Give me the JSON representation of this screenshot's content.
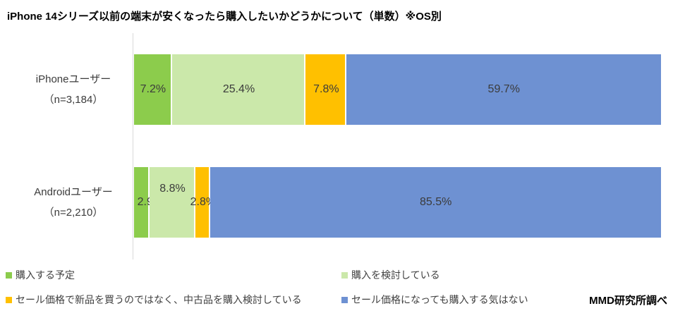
{
  "title": "iPhone 14シリーズ以前の端末が安くなったら購入したいかどうかについて（単数）※OS別",
  "source_note": "MMD研究所調べ",
  "colors": {
    "series_green": "#8ccc4c",
    "series_light_green": "#cbe8aa",
    "series_orange": "#ffc000",
    "series_blue": "#6e91d2",
    "axis_line": "#d9d9d9",
    "data_label_text": "#3b3b3b",
    "background": "#ffffff"
  },
  "chart_data": {
    "type": "bar",
    "orientation": "horizontal",
    "stacked": true,
    "value_unit": "%",
    "xlim": [
      0,
      100
    ],
    "grid": false,
    "legend_position": "bottom",
    "categories": [
      {
        "line1": "iPhoneユーザー",
        "line2": "（n=3,184）"
      },
      {
        "line1": "Androidユーザー",
        "line2": "（n=2,210）"
      }
    ],
    "series": [
      {
        "name": "購入する予定",
        "color": "#8ccc4c",
        "values": [
          7.2,
          2.9
        ]
      },
      {
        "name": "購入を検討している",
        "color": "#cbe8aa",
        "values": [
          25.4,
          8.8
        ]
      },
      {
        "name": "セール価格で新品を買うのではなく、中古品を購入検討している",
        "color": "#ffc000",
        "values": [
          7.8,
          2.8
        ]
      },
      {
        "name": "セール価格になっても購入する気はない",
        "color": "#6e91d2",
        "values": [
          59.7,
          85.5
        ]
      }
    ],
    "data_labels": [
      [
        "7.2%",
        "25.4%",
        "7.8%",
        "59.7%"
      ],
      [
        "2.9%",
        "8.8%",
        "2.8%",
        "85.5%"
      ]
    ],
    "label_dx": [
      [
        0,
        0,
        0,
        0
      ],
      [
        12,
        0,
        0,
        0
      ]
    ],
    "label_dy": [
      [
        0,
        0,
        0,
        0
      ],
      [
        0,
        -19,
        0,
        0
      ]
    ]
  },
  "legend": {
    "items": [
      {
        "label": "購入する予定",
        "color": "#8ccc4c",
        "col": 0,
        "row": 0
      },
      {
        "label": "購入を検討している",
        "color": "#cbe8aa",
        "col": 1,
        "row": 0
      },
      {
        "label": "セール価格で新品を買うのではなく、中古品を購入検討している",
        "color": "#ffc000",
        "col": 0,
        "row": 1
      },
      {
        "label": "セール価格になっても購入する気はない",
        "color": "#6e91d2",
        "col": 1,
        "row": 1
      }
    ]
  }
}
